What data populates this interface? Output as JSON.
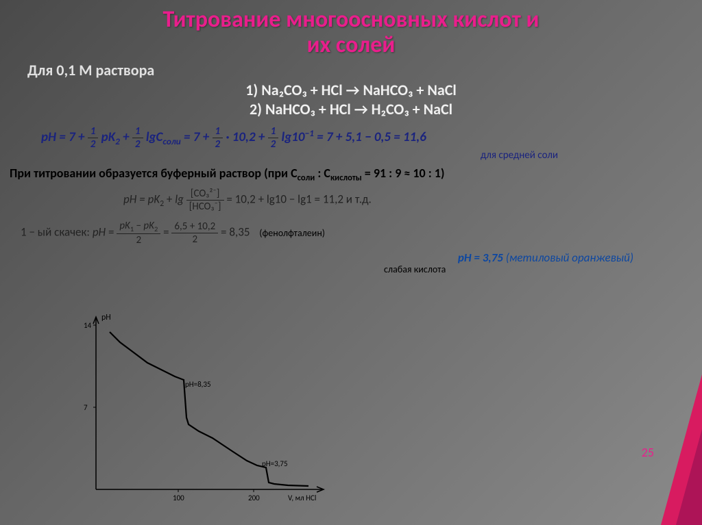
{
  "title_line1": "Титрование многоосновных кислот и",
  "title_line2": "их солей",
  "subtitle": "Для 0,1 М раствора",
  "reaction1": "1) Na₂CO₃ + HCl → NaHCO₃ + NaCl",
  "reaction2": "2) NaHCO₃ + HCl → H₂CO₃ + NaCl",
  "ph_formula": "pH = 7 + ½ pK₂ + ½ lgCсоли = 7 + ½ · 10,2 + ½ lg10⁻¹ = 7 + 5,1 − 0,5 = 11,6",
  "note_middle_salt": "для средней соли",
  "buffer_text": "При титровании образуется буферный раствор (при Cсоли : Cкислоты = 91 : 9 ≈ 10 : 1)",
  "ph2_prefix": "pH = pK₂ + lg",
  "ph2_num": "[CO₃²⁻]",
  "ph2_den": "[HCO₃⁻]",
  "ph2_suffix": " = 10,2 + lg10   − lg1 = 11,2 и т.д.",
  "jump_prefix": "1 − ый скачек: pH = ",
  "jump_num": "pK₁ − pK₂",
  "jump_den": "2",
  "jump_mid": " = ",
  "jump_num2": "6,5 + 10,2",
  "jump_den2": "2",
  "jump_result": " = 8,35",
  "phenol_label": "(фенолфталеин)",
  "orange_ph": "pH = 3,75 ",
  "orange_label": "(метиловый оранжевый)",
  "weak_acid": "слабая кислота",
  "page_number": "25",
  "chart": {
    "y_label": "pH",
    "y_ticks": [
      7,
      14
    ],
    "x_ticks": [
      100,
      200
    ],
    "x_label": "V, мл HCl",
    "annot1": "pH=8,35",
    "annot2": "pH=3,75",
    "curve": [
      [
        20,
        30
      ],
      [
        35,
        45
      ],
      [
        55,
        60
      ],
      [
        75,
        75
      ],
      [
        95,
        85
      ],
      [
        115,
        95
      ],
      [
        128,
        100
      ],
      [
        132,
        155
      ],
      [
        135,
        165
      ],
      [
        150,
        175
      ],
      [
        170,
        185
      ],
      [
        185,
        195
      ],
      [
        200,
        205
      ],
      [
        220,
        218
      ],
      [
        235,
        225
      ],
      [
        248,
        228
      ],
      [
        252,
        250
      ],
      [
        260,
        252
      ],
      [
        280,
        254
      ],
      [
        310,
        255
      ]
    ],
    "axis_color": "#000000",
    "line_color": "#000000",
    "line_width": 2.2
  }
}
